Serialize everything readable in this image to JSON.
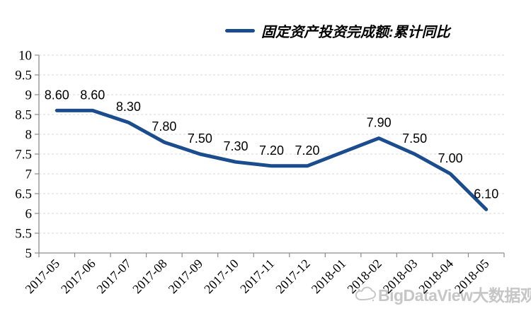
{
  "chart_data": {
    "type": "line",
    "title": "",
    "legend": "固定资产投资完成额:累计同比",
    "legend_position": "top-center",
    "categories": [
      "2017-05",
      "2017-06",
      "2017-07",
      "2017-08",
      "2017-09",
      "2017-10",
      "2017-11",
      "2017-12",
      "2018-01",
      "2018-02",
      "2018-03",
      "2018-04",
      "2018-05"
    ],
    "series": [
      {
        "name": "固定资产投资完成额:累计同比",
        "values": [
          8.6,
          8.6,
          8.3,
          7.8,
          7.5,
          7.3,
          7.2,
          7.2,
          null,
          7.9,
          7.5,
          7.0,
          6.1
        ],
        "data_labels": [
          "8.60",
          "8.60",
          "8.30",
          "7.80",
          "7.50",
          "7.30",
          "7.20",
          "7.20",
          null,
          "7.90",
          "7.50",
          "7.00",
          "6.10"
        ],
        "color": "#1A4C8E"
      }
    ],
    "xlabel": "",
    "ylabel": "",
    "ylim": [
      5,
      10
    ],
    "ytick_labels": [
      "10",
      "9.5",
      "9",
      "8.5",
      "8",
      "7.5",
      "7",
      "6.5",
      "6",
      "5.5",
      "5"
    ],
    "x_tick_rotation_deg": -45,
    "grid": "horizontal dashed gridlines at every 0.5"
  },
  "colors": {
    "line": "#1A4C8E",
    "grid": "#d9d9d9",
    "axis": "#8c8c8c",
    "text": "#000000",
    "watermark": "#c6c6c6"
  },
  "watermark": {
    "text": "BigDataView大数据观",
    "icon": "cloud-logo-icon"
  }
}
